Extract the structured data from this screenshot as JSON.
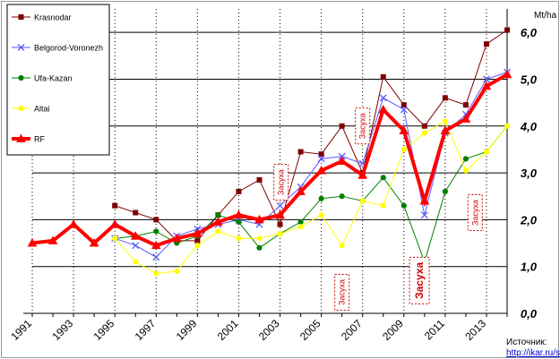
{
  "chart_data": {
    "type": "line",
    "ylabel": "Mt/ha",
    "ylim": [
      0,
      6.5
    ],
    "xlim": [
      1991,
      2014
    ],
    "y_ticks": [
      "0,0",
      "1,0",
      "2,0",
      "3,0",
      "4,0",
      "5,0",
      "6,0"
    ],
    "y_tick_values": [
      0,
      1,
      2,
      3,
      4,
      5,
      6
    ],
    "x_ticks": [
      "1991",
      "1993",
      "1995",
      "1997",
      "1999",
      "2001",
      "2003",
      "2005",
      "2007",
      "2009",
      "2011",
      "2013"
    ],
    "grid": true,
    "legend_position": "left",
    "series": [
      {
        "name": "Krasnodar",
        "color": "#800000",
        "marker": "square",
        "x": [
          1995,
          1996,
          1997,
          1998,
          1999,
          2000,
          2001,
          2002,
          2003,
          2004,
          2005,
          2006,
          2007,
          2008,
          2009,
          2010,
          2011,
          2012,
          2013,
          2014
        ],
        "y": [
          2.3,
          2.15,
          2.0,
          1.55,
          1.55,
          2.1,
          2.6,
          2.85,
          1.9,
          3.45,
          3.4,
          4.0,
          3.0,
          5.05,
          4.45,
          4.0,
          4.6,
          4.45,
          5.75,
          6.05
        ]
      },
      {
        "name": "Belgorod-Voronezh",
        "color": "#5a5aff",
        "marker": "x",
        "x": [
          1995,
          1996,
          1997,
          1998,
          1999,
          2000,
          2001,
          2002,
          2003,
          2004,
          2005,
          2006,
          2007,
          2008,
          2009,
          2010,
          2011,
          2012,
          2013,
          2014
        ],
        "y": [
          1.6,
          1.45,
          1.2,
          1.65,
          1.8,
          1.9,
          2.0,
          1.9,
          2.3,
          2.7,
          3.3,
          3.35,
          3.2,
          4.6,
          4.35,
          2.1,
          3.85,
          4.25,
          5.0,
          5.15
        ]
      },
      {
        "name": "Ufa-Kazan",
        "color": "#008000",
        "marker": "circle",
        "x": [
          1995,
          1996,
          1997,
          1998,
          1999,
          2000,
          2001,
          2002,
          2003,
          2004,
          2005,
          2006,
          2007,
          2008,
          2009,
          2010,
          2011,
          2012,
          2013,
          2014
        ],
        "y": [
          1.6,
          1.65,
          1.75,
          1.5,
          1.65,
          2.1,
          1.95,
          1.4,
          1.7,
          1.95,
          2.45,
          2.5,
          2.4,
          2.9,
          2.3,
          1.1,
          2.6,
          3.3,
          3.45,
          4.0
        ]
      },
      {
        "name": "Altai",
        "color": "#ffff00",
        "marker": "circle",
        "x": [
          1995,
          1996,
          1997,
          1998,
          1999,
          2000,
          2001,
          2002,
          2003,
          2004,
          2005,
          2006,
          2007,
          2008,
          2009,
          2010,
          2011,
          2012,
          2013,
          2014
        ],
        "y": [
          1.6,
          1.1,
          0.85,
          0.9,
          1.45,
          1.75,
          1.6,
          1.6,
          1.7,
          1.85,
          2.1,
          1.45,
          2.4,
          2.3,
          3.5,
          3.85,
          4.1,
          3.05,
          3.45,
          4.0
        ]
      },
      {
        "name": "RF",
        "color": "#ff0000",
        "marker": "triangle",
        "x": [
          1991,
          1992,
          1993,
          1994,
          1995,
          1996,
          1997,
          1998,
          1999,
          2000,
          2001,
          2002,
          2003,
          2004,
          2005,
          2006,
          2007,
          2008,
          2009,
          2010,
          2011,
          2012,
          2013,
          2014
        ],
        "y": [
          1.5,
          1.55,
          1.9,
          1.5,
          1.9,
          1.65,
          1.45,
          1.6,
          1.7,
          1.95,
          2.1,
          2.0,
          2.1,
          2.6,
          3.05,
          3.25,
          2.95,
          4.35,
          3.9,
          2.4,
          3.9,
          4.15,
          4.85,
          5.1
        ]
      }
    ],
    "annotations": [
      {
        "text": "Засуха",
        "x": 2003.05,
        "y": 2.8,
        "emphasis": false
      },
      {
        "text": "Засуха",
        "x": 2007.0,
        "y": 4.0,
        "emphasis": false
      },
      {
        "text": "Засуха",
        "x": 2006.0,
        "y": 0.45,
        "emphasis": false
      },
      {
        "text": "Засуха",
        "x": 2009.75,
        "y": 0.7,
        "emphasis": true
      },
      {
        "text": "Засуха",
        "x": 2012.45,
        "y": 2.15,
        "emphasis": false
      }
    ]
  },
  "source": {
    "label": "Источник:",
    "link": "http://ikar.ru/sugar"
  }
}
